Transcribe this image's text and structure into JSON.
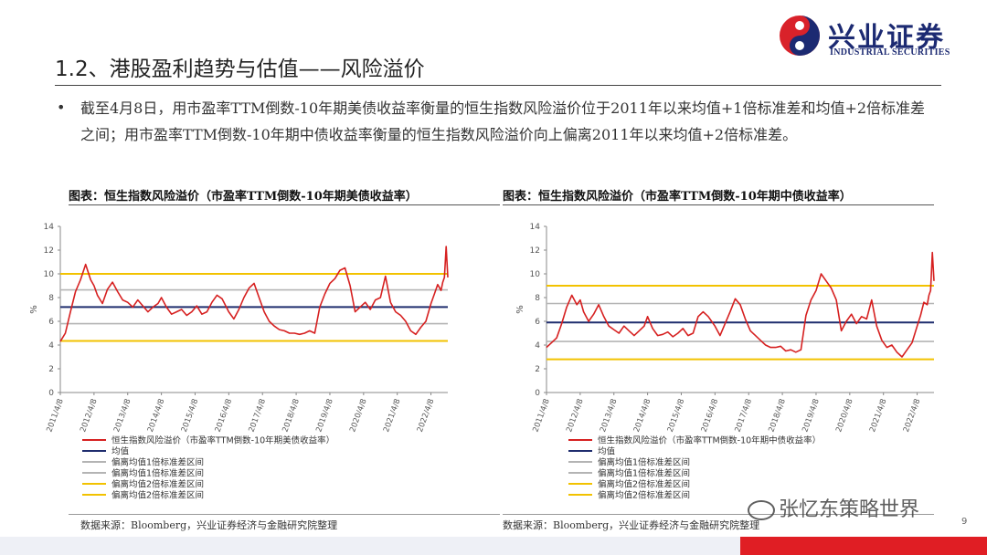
{
  "header": {
    "logo_cn": "兴业证券",
    "logo_en": "INDUSTRIAL SECURITIES",
    "title": "1.2、港股盈利趋势与估值——风险溢价"
  },
  "bullet": {
    "text": "截至4月8日，用市盈率TTM倒数-10年期美债收益率衡量的恒生指数风险溢价位于2011年以来均值+1倍标准差和均值+2倍标准差之间；用市盈率TTM倒数-10年期中债收益率衡量的恒生指数风险溢价向上偏离2011年以来均值+2倍标准差。"
  },
  "colors": {
    "series": "#d62020",
    "mean": "#1f2d6e",
    "sd1": "#b4b4b4",
    "sd2": "#f2c200"
  },
  "footer": {
    "page_number": "9",
    "watermark": "张忆东策略世界"
  },
  "chart_data": [
    {
      "type": "line",
      "title": "图表：恒生指数风险溢价（市盈率TTM倒数-10年期美债收益率）",
      "ylabel": "%",
      "ylim": [
        0,
        14
      ],
      "yticks": [
        "0",
        "2",
        "4",
        "6",
        "8",
        "10",
        "12",
        "14"
      ],
      "xticks": [
        "2011/4/8",
        "2012/4/8",
        "2013/4/8",
        "2014/4/8",
        "2015/4/8",
        "2016/4/8",
        "2017/4/8",
        "2018/4/8",
        "2019/4/8",
        "2020/4/8",
        "2021/4/8",
        "2022/4/8"
      ],
      "x": [
        0,
        0.15,
        0.3,
        0.45,
        0.6,
        0.75,
        0.9,
        1.0,
        1.1,
        1.25,
        1.4,
        1.55,
        1.7,
        1.85,
        2.0,
        2.15,
        2.3,
        2.45,
        2.6,
        2.75,
        2.9,
        3.0,
        3.15,
        3.3,
        3.45,
        3.6,
        3.75,
        3.9,
        4.05,
        4.2,
        4.35,
        4.5,
        4.65,
        4.8,
        5.0,
        5.15,
        5.3,
        5.45,
        5.6,
        5.75,
        5.9,
        6.05,
        6.2,
        6.35,
        6.5,
        6.65,
        6.8,
        6.95,
        7.1,
        7.25,
        7.4,
        7.55,
        7.7,
        7.85,
        8.0,
        8.15,
        8.3,
        8.45,
        8.6,
        8.75,
        8.9,
        9.05,
        9.2,
        9.35,
        9.5,
        9.65,
        9.8,
        9.95,
        10.1,
        10.25,
        10.4,
        10.55,
        10.7,
        10.85,
        11.0,
        11.1,
        11.2,
        11.3,
        11.35,
        11.4,
        11.45,
        11.5
      ],
      "values": [
        4.3,
        5.0,
        6.8,
        8.5,
        9.5,
        10.8,
        9.5,
        9.0,
        8.2,
        7.5,
        8.7,
        9.3,
        8.5,
        7.8,
        7.6,
        7.2,
        7.8,
        7.3,
        6.8,
        7.2,
        7.5,
        8.0,
        7.2,
        6.6,
        6.8,
        7.0,
        6.5,
        6.8,
        7.3,
        6.6,
        6.8,
        7.6,
        8.2,
        7.9,
        6.8,
        6.2,
        7.0,
        8.0,
        8.8,
        9.2,
        8.0,
        6.8,
        6.0,
        5.6,
        5.3,
        5.2,
        5.0,
        5.0,
        4.9,
        5.0,
        5.2,
        5.0,
        7.2,
        8.3,
        9.2,
        9.6,
        10.3,
        10.5,
        9.0,
        6.8,
        7.2,
        7.6,
        7.0,
        7.8,
        8.0,
        9.8,
        7.6,
        6.8,
        6.5,
        6.0,
        5.2,
        4.9,
        5.5,
        6.0,
        7.5,
        8.3,
        9.1,
        8.6,
        9.3,
        9.7,
        12.3,
        9.7
      ],
      "series": [
        {
          "name": "恒生指数风险溢价（市盈率TTM倒数-10年期美债收益率）"
        }
      ],
      "reference_lines": [
        {
          "name": "均值",
          "value": 7.2
        },
        {
          "name": "偏离均值1倍标准差区间",
          "value": 8.65
        },
        {
          "name": "偏离均值1倍标准差区间",
          "value": 5.8
        },
        {
          "name": "偏离均值2倍标准差区间",
          "value": 10.0
        },
        {
          "name": "偏离均值2倍标准差区间",
          "value": 4.35
        }
      ],
      "legend": [
        "恒生指数风险溢价（市盈率TTM倒数-10年期美债收益率）",
        "均值",
        "偏离均值1倍标准差区间",
        "偏离均值1倍标准差区间",
        "偏离均值2倍标准差区间",
        "偏离均值2倍标准差区间"
      ],
      "legend_placement": "bottom",
      "grid": false,
      "source": "数据来源：Bloomberg，兴业证券经济与金融研究院整理"
    },
    {
      "type": "line",
      "title": "图表：恒生指数风险溢价（市盈率TTM倒数-10年期中债收益率）",
      "ylabel": "%",
      "ylim": [
        0,
        14
      ],
      "yticks": [
        "0",
        "2",
        "4",
        "6",
        "8",
        "10",
        "12",
        "14"
      ],
      "xticks": [
        "2011/4/8",
        "2012/4/8",
        "2013/4/8",
        "2014/4/8",
        "2015/4/8",
        "2016/4/8",
        "2017/4/8",
        "2018/4/8",
        "2019/4/8",
        "2020/4/8",
        "2021/4/8",
        "2022/4/8"
      ],
      "x": [
        0,
        0.15,
        0.3,
        0.45,
        0.6,
        0.75,
        0.9,
        1.0,
        1.1,
        1.25,
        1.4,
        1.55,
        1.7,
        1.85,
        2.0,
        2.15,
        2.3,
        2.45,
        2.6,
        2.75,
        2.9,
        3.0,
        3.15,
        3.3,
        3.45,
        3.6,
        3.75,
        3.9,
        4.05,
        4.2,
        4.35,
        4.5,
        4.65,
        4.8,
        5.0,
        5.15,
        5.3,
        5.45,
        5.6,
        5.75,
        5.9,
        6.05,
        6.2,
        6.35,
        6.5,
        6.65,
        6.8,
        6.95,
        7.1,
        7.25,
        7.4,
        7.55,
        7.7,
        7.85,
        8.0,
        8.15,
        8.3,
        8.45,
        8.6,
        8.75,
        8.9,
        9.05,
        9.2,
        9.35,
        9.5,
        9.65,
        9.8,
        9.95,
        10.1,
        10.25,
        10.4,
        10.55,
        10.7,
        10.85,
        11.0,
        11.1,
        11.2,
        11.3,
        11.35,
        11.4,
        11.45,
        11.5
      ],
      "values": [
        3.8,
        4.2,
        4.6,
        5.8,
        7.2,
        8.2,
        7.4,
        7.8,
        6.8,
        6.0,
        6.6,
        7.4,
        6.4,
        5.6,
        5.3,
        5.0,
        5.6,
        5.2,
        4.8,
        5.2,
        5.6,
        6.4,
        5.4,
        4.8,
        4.9,
        5.1,
        4.7,
        5.0,
        5.4,
        4.8,
        5.0,
        6.4,
        6.8,
        6.4,
        5.6,
        4.8,
        5.8,
        6.8,
        7.9,
        7.4,
        6.2,
        5.2,
        4.8,
        4.4,
        4.0,
        3.8,
        3.8,
        3.9,
        3.5,
        3.6,
        3.4,
        3.6,
        6.5,
        7.8,
        8.6,
        10.0,
        9.4,
        8.8,
        7.8,
        5.2,
        6.0,
        6.6,
        5.8,
        6.4,
        6.2,
        7.8,
        5.6,
        4.4,
        3.8,
        4.0,
        3.4,
        3.0,
        3.6,
        4.2,
        5.6,
        6.5,
        7.6,
        7.4,
        8.2,
        8.6,
        11.8,
        9.4
      ],
      "series": [
        {
          "name": "恒生指数风险溢价（市盈率TTM倒数-10年期中债收益率）"
        }
      ],
      "reference_lines": [
        {
          "name": "均值",
          "value": 5.9
        },
        {
          "name": "偏离均值1倍标准差区间",
          "value": 7.5
        },
        {
          "name": "偏离均值1倍标准差区间",
          "value": 4.3
        },
        {
          "name": "偏离均值2倍标准差区间",
          "value": 9.0
        },
        {
          "name": "偏离均值2倍标准差区间",
          "value": 2.8
        }
      ],
      "legend": [
        "恒生指数风险溢价（市盈率TTM倒数-10年期中债收益率）",
        "均值",
        "偏离均值1倍标准差区间",
        "偏离均值1倍标准差区间",
        "偏离均值2倍标准差区间",
        "偏离均值2倍标准差区间"
      ],
      "legend_placement": "bottom",
      "grid": false,
      "source": "数据来源：Bloomberg，兴业证券经济与金融研究院整理"
    }
  ]
}
